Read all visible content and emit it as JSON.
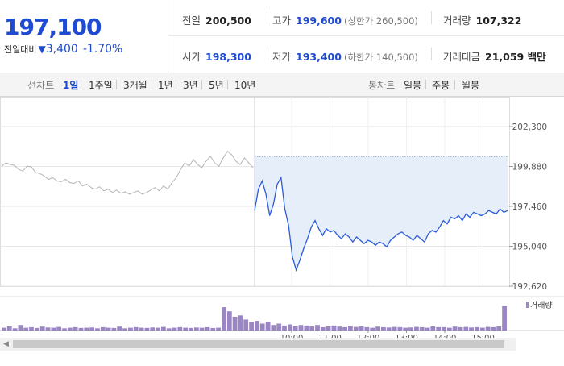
{
  "quote": {
    "price": "197,100",
    "change_label": "전일대비",
    "change_arrow": "▼",
    "change_value": "3,400",
    "change_percent": "-1.70%",
    "stats_row1": [
      {
        "label": "전일",
        "value": "200,500",
        "blue": false,
        "sub": ""
      },
      {
        "label": "고가",
        "value": "199,600",
        "blue": true,
        "sub": "(상한가 260,500)"
      },
      {
        "label": "거래량",
        "value": "107,322",
        "blue": false,
        "sub": ""
      }
    ],
    "stats_row2": [
      {
        "label": "시가",
        "value": "198,300",
        "blue": true,
        "sub": ""
      },
      {
        "label": "저가",
        "value": "193,400",
        "blue": true,
        "sub": "(하한가 140,500)"
      },
      {
        "label": "거래대금",
        "value": "21,059 백만",
        "blue": false,
        "sub": ""
      }
    ]
  },
  "tabs": {
    "line_label": "선차트",
    "line_periods": [
      "1일",
      "1주일",
      "3개월",
      "1년",
      "3년",
      "5년",
      "10년"
    ],
    "line_active": 0,
    "candle_label": "봉차트",
    "candle_periods": [
      "일봉",
      "주봉",
      "월봉"
    ]
  },
  "chart_data": {
    "type": "line",
    "ylim": [
      192620,
      202300
    ],
    "yticks": [
      "202,300",
      "199,880",
      "197,460",
      "195,040",
      "192,620"
    ],
    "prev_close": 200500,
    "legend": "거래량",
    "xlabels": [
      "10:00",
      "11:00",
      "12:00",
      "13:00",
      "14:00",
      "15:00"
    ],
    "prev_day_series": [
      199900,
      200100,
      200000,
      199950,
      199700,
      199600,
      199900,
      199850,
      199500,
      199450,
      199300,
      199100,
      199200,
      199000,
      198950,
      199100,
      198900,
      198850,
      199000,
      198700,
      198800,
      198600,
      198500,
      198650,
      198400,
      198500,
      198300,
      198450,
      198250,
      198350,
      198200,
      198300,
      198400,
      198200,
      198300,
      198450,
      198600,
      198400,
      198700,
      198500,
      198900,
      199200,
      199700,
      200100,
      199900,
      200300,
      200000,
      199800,
      200200,
      200500,
      200100,
      199900,
      200400,
      200800,
      200600,
      200200,
      200000,
      200400,
      200100,
      199800
    ],
    "today_series": [
      197200,
      198500,
      199000,
      198200,
      196900,
      197600,
      198800,
      199200,
      197300,
      196300,
      194400,
      193600,
      194200,
      194900,
      195500,
      196200,
      196600,
      196100,
      195700,
      196100,
      195900,
      196000,
      195700,
      195500,
      195800,
      195600,
      195300,
      195600,
      195400,
      195200,
      195400,
      195300,
      195100,
      195300,
      195200,
      195000,
      195400,
      195600,
      195800,
      195900,
      195700,
      195600,
      195400,
      195700,
      195500,
      195300,
      195800,
      196000,
      195900,
      196200,
      196600,
      196400,
      196800,
      196700,
      196900,
      196600,
      197000,
      196800,
      197100,
      197000,
      196900,
      197000,
      197200,
      197100,
      197000,
      197300,
      197100,
      197200
    ],
    "volume": [
      0.1,
      0.15,
      0.08,
      0.2,
      0.1,
      0.12,
      0.09,
      0.14,
      0.11,
      0.1,
      0.13,
      0.08,
      0.1,
      0.12,
      0.09,
      0.1,
      0.11,
      0.08,
      0.12,
      0.1,
      0.09,
      0.14,
      0.08,
      0.1,
      0.12,
      0.1,
      0.09,
      0.11,
      0.1,
      0.13,
      0.08,
      0.1,
      0.12,
      0.1,
      0.09,
      0.11,
      0.1,
      0.12,
      0.09,
      0.1,
      0.85,
      0.7,
      0.5,
      0.55,
      0.4,
      0.3,
      0.35,
      0.25,
      0.3,
      0.2,
      0.25,
      0.18,
      0.22,
      0.15,
      0.2,
      0.18,
      0.15,
      0.2,
      0.12,
      0.15,
      0.18,
      0.14,
      0.12,
      0.16,
      0.13,
      0.15,
      0.12,
      0.1,
      0.14,
      0.12,
      0.11,
      0.13,
      0.12,
      0.1,
      0.11,
      0.13,
      0.12,
      0.1,
      0.15,
      0.12,
      0.12,
      0.1,
      0.14,
      0.12,
      0.13,
      0.11,
      0.12,
      0.1,
      0.13,
      0.12,
      0.15,
      0.9
    ]
  }
}
